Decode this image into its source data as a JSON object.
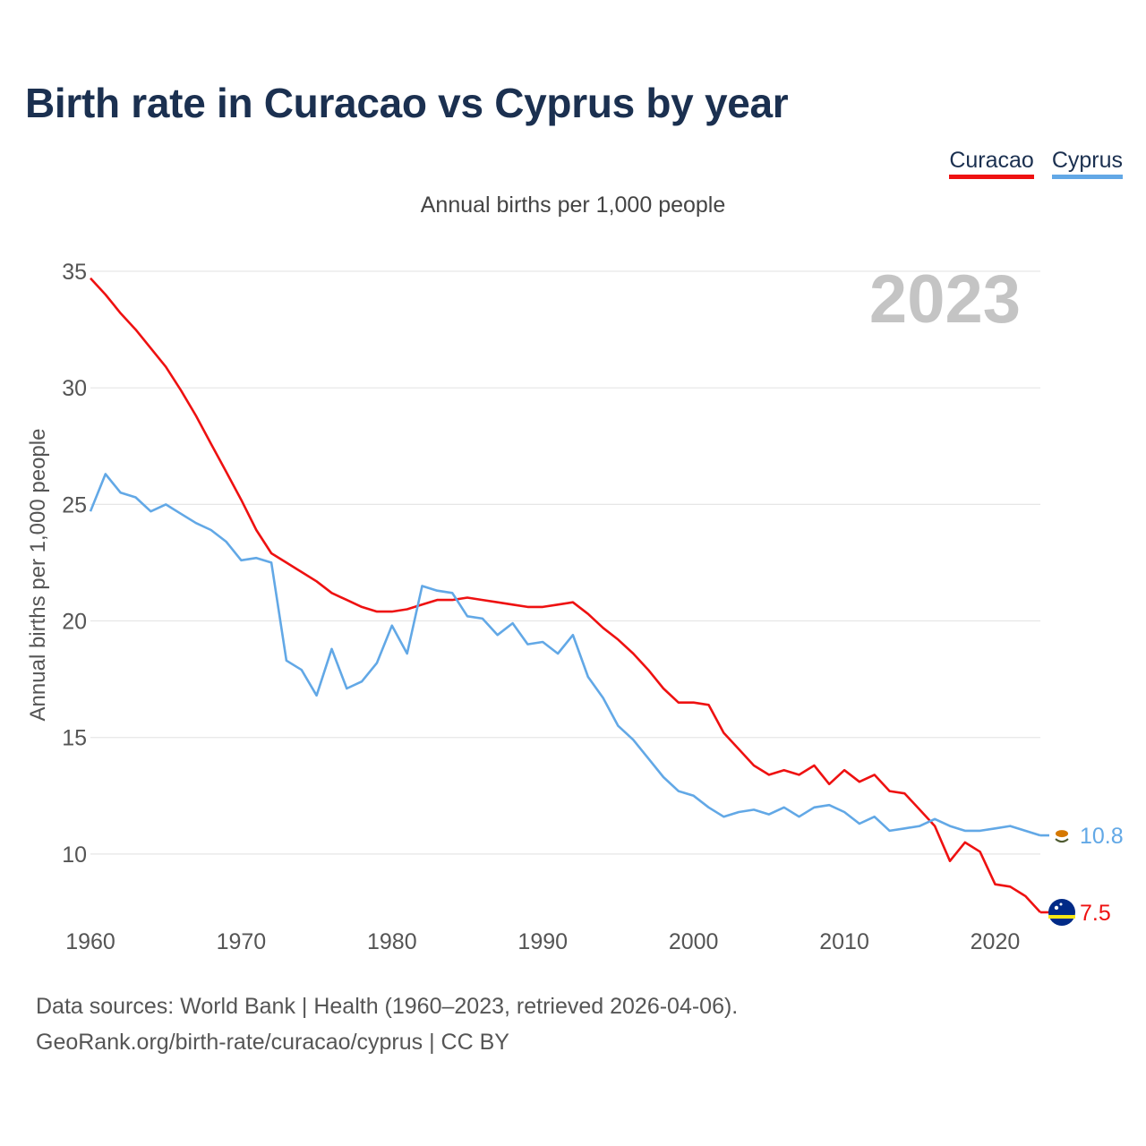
{
  "title": "Birth rate in Curacao vs Cyprus by year",
  "subtitle": "Annual births per 1,000 people",
  "footer": {
    "line1": "Data sources: World Bank | Health (1960–2023, retrieved 2026-04-06).",
    "line2": "GeoRank.org/birth-rate/curacao/cyprus | CC BY"
  },
  "colors": {
    "curacao": "#ee1111",
    "cyprus": "#62a8e6",
    "grid": "#e6e6e6",
    "year": "#c4c4c4",
    "axis_text": "#555555"
  },
  "chart_data": {
    "type": "line",
    "title": "Birth rate in Curacao vs Cyprus by year",
    "ylabel": "Annual births per 1,000 people",
    "xlabel": "",
    "xlim": [
      1960,
      2023
    ],
    "ylim": [
      7,
      35
    ],
    "x_ticks": [
      "1960",
      "1970",
      "1980",
      "1990",
      "2000",
      "2010",
      "2020"
    ],
    "y_ticks": [
      "35",
      "30",
      "25",
      "20",
      "15",
      "10"
    ],
    "current_year": "2023",
    "series": [
      {
        "name": "Curacao",
        "color": "#ee1111",
        "end_label": "7.5",
        "flag": "curacao-flag-icon",
        "values": [
          34.7,
          34.0,
          33.2,
          32.5,
          31.7,
          30.9,
          29.9,
          28.8,
          27.6,
          26.4,
          25.2,
          23.9,
          22.9,
          22.5,
          22.1,
          21.7,
          21.2,
          20.9,
          20.6,
          20.4,
          20.4,
          20.5,
          20.7,
          20.9,
          20.9,
          21.0,
          20.9,
          20.8,
          20.7,
          20.6,
          20.6,
          20.7,
          20.8,
          20.3,
          19.7,
          19.2,
          18.6,
          17.9,
          17.1,
          16.5,
          16.5,
          16.4,
          15.2,
          14.5,
          13.8,
          13.4,
          13.6,
          13.4,
          13.8,
          13.0,
          13.6,
          13.1,
          13.4,
          12.7,
          12.6,
          11.9,
          11.2,
          9.7,
          10.5,
          10.1,
          8.7,
          8.6,
          8.2,
          7.5
        ]
      },
      {
        "name": "Cyprus",
        "color": "#62a8e6",
        "end_label": "10.8",
        "flag": "cyprus-flag-icon",
        "values": [
          24.7,
          26.3,
          25.5,
          25.3,
          24.7,
          25.0,
          24.6,
          24.2,
          23.9,
          23.4,
          22.6,
          22.7,
          22.5,
          18.3,
          17.9,
          16.8,
          18.8,
          17.1,
          17.4,
          18.2,
          19.8,
          18.6,
          21.5,
          21.3,
          21.2,
          20.2,
          20.1,
          19.4,
          19.9,
          19.0,
          19.1,
          18.6,
          19.4,
          17.6,
          16.7,
          15.5,
          14.9,
          14.1,
          13.3,
          12.7,
          12.5,
          12.0,
          11.6,
          11.8,
          11.9,
          11.7,
          12.0,
          11.6,
          12.0,
          12.1,
          11.8,
          11.3,
          11.6,
          11.0,
          11.1,
          11.2,
          11.5,
          11.2,
          11.0,
          11.0,
          11.1,
          11.2,
          11.0,
          10.8
        ]
      }
    ]
  }
}
